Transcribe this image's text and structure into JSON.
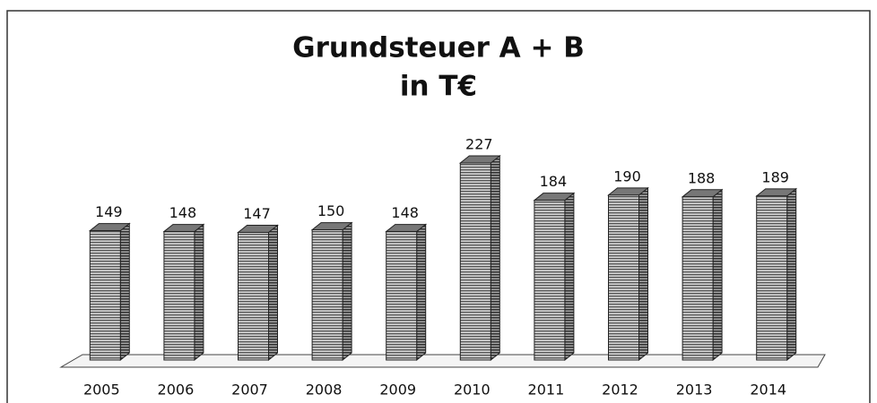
{
  "chart_data": {
    "type": "bar3d",
    "title": "Grundsteuer A + B",
    "subtitle": "in T€",
    "categories": [
      "2005",
      "2006",
      "2007",
      "2008",
      "2009",
      "2010",
      "2011",
      "2012",
      "2013",
      "2014"
    ],
    "values": [
      149,
      148,
      147,
      150,
      148,
      227,
      184,
      190,
      188,
      189
    ],
    "color": "#8a8a8a"
  }
}
